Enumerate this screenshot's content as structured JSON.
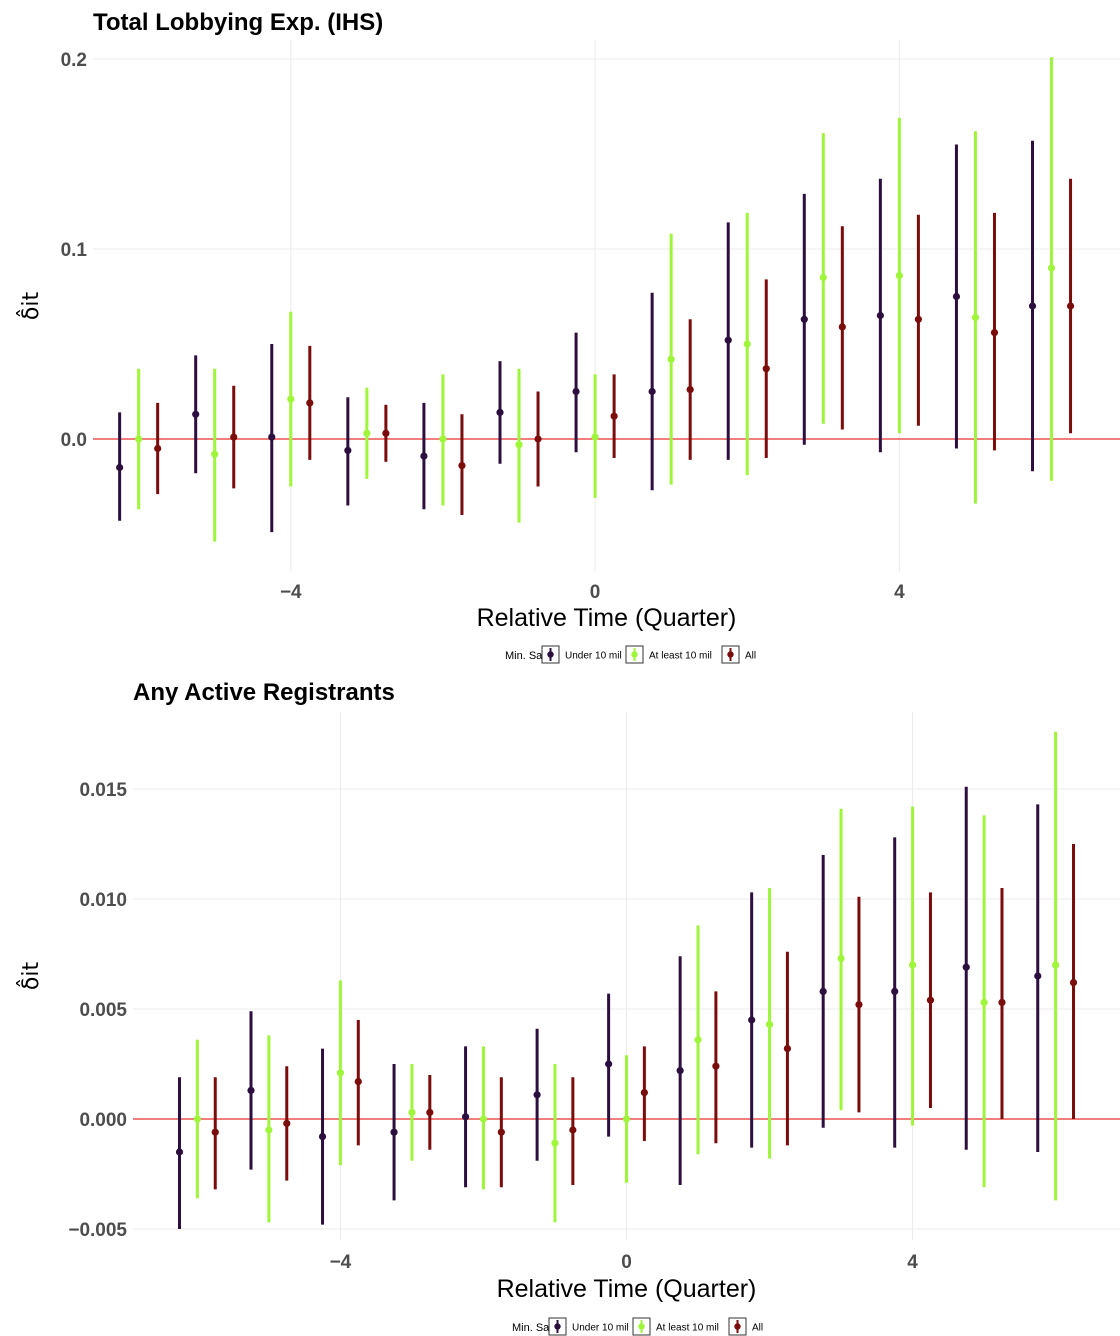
{
  "colors": {
    "under": "#2c0f3f",
    "atleast": "#9ef53a",
    "all": "#7a0c0c",
    "zero_line": "#e8302e",
    "grid": "#ebebeb"
  },
  "legend": {
    "title": "Min. Sales",
    "items": [
      {
        "label": "Under 10 mil",
        "color_key": "under"
      },
      {
        "label": "At least 10 mil",
        "color_key": "atleast"
      },
      {
        "label": "All",
        "color_key": "all"
      }
    ]
  },
  "chart_data": [
    {
      "type": "errorbar",
      "title": "Total Lobbying Exp. (IHS)",
      "xlabel": "Relative Time (Quarter)",
      "ylabel": "δ̂it",
      "x_ticks": [
        -4,
        0,
        4
      ],
      "x_tick_labels": [
        "−4",
        "0",
        "4"
      ],
      "y_ticks": [
        0.0,
        0.1,
        0.2
      ],
      "y_tick_labels": [
        "0.0",
        "0.1",
        "0.2"
      ],
      "xlim": [
        -6.6,
        6.9
      ],
      "ylim": [
        -0.07,
        0.21
      ],
      "grid": true,
      "reference_line_y": 0,
      "x": [
        -6,
        -5,
        -4,
        -3,
        -2,
        -1,
        0,
        1,
        2,
        3,
        4,
        5,
        6
      ],
      "series": [
        {
          "name": "Under 10 mil",
          "color_key": "under",
          "offset": -0.25,
          "estimate": [
            -0.015,
            0.013,
            0.001,
            -0.006,
            -0.009,
            0.014,
            0.025,
            0.025,
            0.052,
            0.063,
            0.065,
            0.075,
            0.07
          ],
          "lower": [
            -0.043,
            -0.018,
            -0.049,
            -0.035,
            -0.037,
            -0.013,
            -0.007,
            -0.027,
            -0.011,
            -0.003,
            -0.007,
            -0.005,
            -0.017
          ],
          "upper": [
            0.014,
            0.044,
            0.05,
            0.022,
            0.019,
            0.041,
            0.056,
            0.077,
            0.114,
            0.129,
            0.137,
            0.155,
            0.157
          ]
        },
        {
          "name": "At least 10 mil",
          "color_key": "atleast",
          "offset": 0,
          "estimate": [
            0.0,
            -0.008,
            0.021,
            0.003,
            0.0,
            -0.003,
            0.001,
            0.042,
            0.05,
            0.085,
            0.086,
            0.064,
            0.09
          ],
          "lower": [
            -0.037,
            -0.054,
            -0.025,
            -0.021,
            -0.035,
            -0.044,
            -0.031,
            -0.024,
            -0.019,
            0.008,
            0.003,
            -0.034,
            -0.022
          ],
          "upper": [
            0.037,
            0.037,
            0.067,
            0.027,
            0.034,
            0.037,
            0.034,
            0.108,
            0.119,
            0.161,
            0.169,
            0.162,
            0.201
          ]
        },
        {
          "name": "All",
          "color_key": "all",
          "offset": 0.25,
          "estimate": [
            -0.005,
            0.001,
            0.019,
            0.003,
            -0.014,
            0.0,
            0.012,
            0.026,
            0.037,
            0.059,
            0.063,
            0.056,
            0.07
          ],
          "lower": [
            -0.029,
            -0.026,
            -0.011,
            -0.012,
            -0.04,
            -0.025,
            -0.01,
            -0.011,
            -0.01,
            0.005,
            0.007,
            -0.006,
            0.003
          ],
          "upper": [
            0.019,
            0.028,
            0.049,
            0.018,
            0.013,
            0.025,
            0.034,
            0.063,
            0.084,
            0.112,
            0.118,
            0.119,
            0.137
          ]
        }
      ]
    },
    {
      "type": "errorbar",
      "title": "Any Active Registrants",
      "xlabel": "Relative Time (Quarter)",
      "ylabel": "δ̂it",
      "x_ticks": [
        -4,
        0,
        4
      ],
      "x_tick_labels": [
        "−4",
        "0",
        "4"
      ],
      "y_ticks": [
        -0.005,
        0.0,
        0.005,
        0.01,
        0.015
      ],
      "y_tick_labels": [
        "−0.005",
        "0.000",
        "0.005",
        "0.010",
        "0.015"
      ],
      "xlim": [
        -6.9,
        6.9
      ],
      "ylim": [
        -0.0055,
        0.0185
      ],
      "grid": true,
      "reference_line_y": 0,
      "x": [
        -6,
        -5,
        -4,
        -3,
        -2,
        -1,
        0,
        1,
        2,
        3,
        4,
        5,
        6
      ],
      "series": [
        {
          "name": "Under 10 mil",
          "color_key": "under",
          "offset": -0.25,
          "estimate": [
            -0.0015,
            0.0013,
            -0.0008,
            -0.0006,
            0.0001,
            0.0011,
            0.0025,
            0.0022,
            0.0045,
            0.0058,
            0.0058,
            0.0069,
            0.0065
          ],
          "lower": [
            -0.005,
            -0.0023,
            -0.0048,
            -0.0037,
            -0.0031,
            -0.0019,
            -0.0008,
            -0.003,
            -0.0013,
            -0.0004,
            -0.0013,
            -0.0014,
            -0.0015
          ],
          "upper": [
            0.0019,
            0.0049,
            0.0032,
            0.0025,
            0.0033,
            0.0041,
            0.0057,
            0.0074,
            0.0103,
            0.012,
            0.0128,
            0.0151,
            0.0143
          ]
        },
        {
          "name": "At least 10 mil",
          "color_key": "atleast",
          "offset": 0,
          "estimate": [
            0.0,
            -0.0005,
            0.0021,
            0.0003,
            0.0,
            -0.0011,
            0.0,
            0.0036,
            0.0043,
            0.0073,
            0.007,
            0.0053,
            0.007
          ],
          "lower": [
            -0.0036,
            -0.0047,
            -0.0021,
            -0.0019,
            -0.0032,
            -0.0047,
            -0.0029,
            -0.0016,
            -0.0018,
            0.0004,
            -0.0003,
            -0.0031,
            -0.0037
          ],
          "upper": [
            0.0036,
            0.0038,
            0.0063,
            0.0025,
            0.0033,
            0.0025,
            0.0029,
            0.0088,
            0.0105,
            0.0141,
            0.0142,
            0.0138,
            0.0176
          ]
        },
        {
          "name": "All",
          "color_key": "all",
          "offset": 0.25,
          "estimate": [
            -0.0006,
            -0.0002,
            0.0017,
            0.0003,
            -0.0006,
            -0.0005,
            0.0012,
            0.0024,
            0.0032,
            0.0052,
            0.0054,
            0.0053,
            0.0062
          ],
          "lower": [
            -0.0032,
            -0.0028,
            -0.0012,
            -0.0014,
            -0.0031,
            -0.003,
            -0.001,
            -0.0011,
            -0.0012,
            0.0003,
            0.0005,
            0.0,
            0.0
          ],
          "upper": [
            0.0019,
            0.0024,
            0.0045,
            0.002,
            0.0019,
            0.0019,
            0.0033,
            0.0058,
            0.0076,
            0.0101,
            0.0103,
            0.0105,
            0.0125
          ]
        }
      ]
    }
  ]
}
